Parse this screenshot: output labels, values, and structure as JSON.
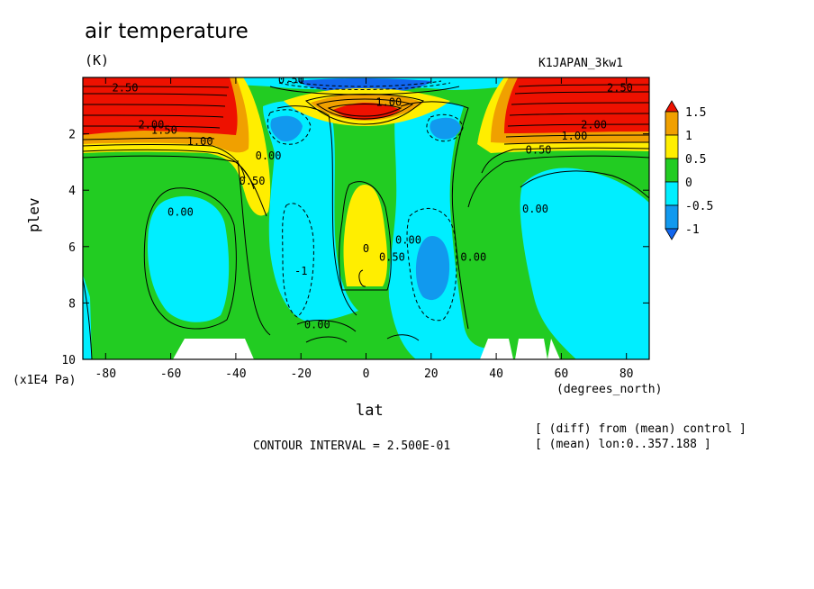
{
  "header": {
    "title": "air temperature",
    "units": "(K)",
    "run_name": "K1JAPAN_3kw1"
  },
  "footer": {
    "contour_interval": "CONTOUR INTERVAL = 2.500E-01",
    "note_diff": "[ (diff) from (mean) control ]",
    "note_mean": "[ (mean) lon:0..357.188 ]"
  },
  "colors": {
    "red": "#ee1100",
    "orange": "#f0a000",
    "yellow": "#ffee00",
    "green": "#22cc22",
    "cyan": "#00eeff",
    "blue": "#1199ee"
  },
  "chart_data": {
    "type": "contour",
    "title": "air temperature",
    "units": "(K)",
    "xlabel": "lat",
    "xunit": "(degrees_north)",
    "ylabel": "plev",
    "yunit": "(x1E4 Pa)",
    "xlim": [
      -87,
      87
    ],
    "ylim": [
      10,
      0
    ],
    "x_ticks": [
      -80,
      -60,
      -40,
      -20,
      0,
      20,
      40,
      60,
      80
    ],
    "y_ticks": [
      2,
      4,
      6,
      8,
      10
    ],
    "contour_interval": 0.25,
    "colorbar": {
      "levels": [
        "1.5",
        "1",
        "0.5",
        "0",
        "-0.5",
        "-1"
      ],
      "bins": [
        {
          "range": "> 1.5",
          "color": "#ee1100"
        },
        {
          "range": "1 to 1.5",
          "color": "#f0a000"
        },
        {
          "range": "0.5 to 1",
          "color": "#ffee00"
        },
        {
          "range": "0 to 0.5",
          "color": "#22cc22"
        },
        {
          "range": "-0.5 to 0",
          "color": "#00eeff"
        },
        {
          "range": "-1 to -0.5",
          "color": "#1199ee"
        },
        {
          "range": "< -1",
          "color": "#1166ee"
        }
      ]
    },
    "contour_labels": [
      {
        "text": "2.50",
        "lat": -74,
        "plev": 0.5
      },
      {
        "text": "2.00",
        "lat": -66,
        "plev": 1.8
      },
      {
        "text": "1.50",
        "lat": -62,
        "plev": 2.0
      },
      {
        "text": "1.00",
        "lat": -51,
        "plev": 2.4
      },
      {
        "text": "0.50",
        "lat": -35,
        "plev": 3.8
      },
      {
        "text": "0.00",
        "lat": -30,
        "plev": 2.9
      },
      {
        "text": "0.00",
        "lat": -57,
        "plev": 4.9
      },
      {
        "text": "0.00",
        "lat": -15,
        "plev": 8.9
      },
      {
        "text": "0.50",
        "lat": -23,
        "plev": 0.2
      },
      {
        "text": "1.00",
        "lat": 7,
        "plev": 1.0
      },
      {
        "text": "0",
        "lat": 0,
        "plev": 6.2
      },
      {
        "text": "0.50",
        "lat": 8,
        "plev": 6.5
      },
      {
        "text": "0.00",
        "lat": 13,
        "plev": 5.9
      },
      {
        "text": "0.00",
        "lat": 33,
        "plev": 6.5
      },
      {
        "text": "0.00",
        "lat": 52,
        "plev": 4.8
      },
      {
        "text": "-1",
        "lat": -20,
        "plev": 7.0
      },
      {
        "text": "0.50",
        "lat": 53,
        "plev": 2.7
      },
      {
        "text": "1.00",
        "lat": 64,
        "plev": 2.2
      },
      {
        "text": "2.00",
        "lat": 70,
        "plev": 1.8
      },
      {
        "text": "2.50",
        "lat": 78,
        "plev": 0.5
      }
    ]
  }
}
